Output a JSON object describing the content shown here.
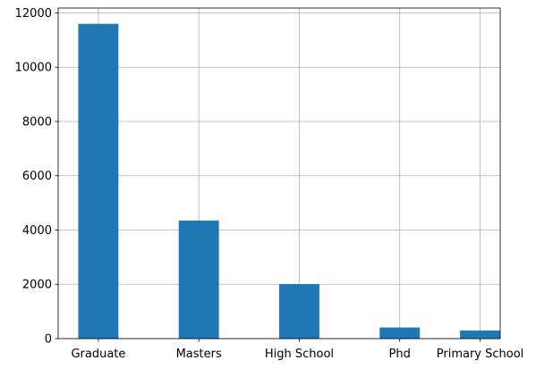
{
  "chart_data": {
    "type": "bar",
    "title": "",
    "xlabel": "",
    "ylabel": "",
    "categories": [
      "Graduate",
      "Masters",
      "High School",
      "Phd",
      "Primary School"
    ],
    "values": [
      11600,
      4350,
      2010,
      410,
      300
    ],
    "ylim": [
      0,
      12181
    ],
    "yticks": [
      "0",
      "2000",
      "4000",
      "6000",
      "8000",
      "10000",
      "12000"
    ],
    "grid": true,
    "bar_color": "#1f77b4"
  }
}
